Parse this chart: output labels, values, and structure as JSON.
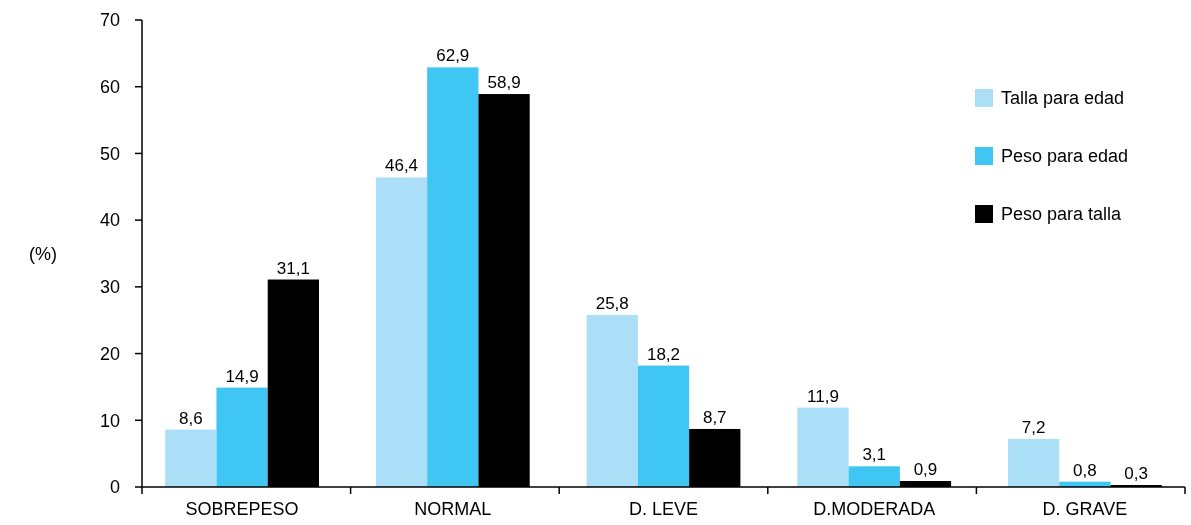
{
  "chart_data": {
    "type": "bar",
    "ylabel": "(%)",
    "categories": [
      "SOBREPESO",
      "NORMAL",
      "D. LEVE",
      "D.MODERADA",
      "D. GRAVE"
    ],
    "series": [
      {
        "name": "Talla para edad",
        "color": "#aadff7",
        "values": [
          8.6,
          46.4,
          25.8,
          11.9,
          7.2
        ],
        "value_labels": [
          "8,6",
          "46,4",
          "25,8",
          "11,9",
          "7,2"
        ]
      },
      {
        "name": "Peso para edad",
        "color": "#40c6f2",
        "values": [
          14.9,
          62.9,
          18.2,
          3.1,
          0.8
        ],
        "value_labels": [
          "14,9",
          "62,9",
          "18,2",
          "3,1",
          "0,8"
        ]
      },
      {
        "name": "Peso para talla",
        "color": "#000000",
        "values": [
          31.1,
          58.9,
          8.7,
          0.9,
          0.3
        ],
        "value_labels": [
          "31,1",
          "58,9",
          "8,7",
          "0,9",
          "0,3"
        ]
      }
    ],
    "ylim": [
      0,
      70
    ],
    "yticks": [
      0,
      10,
      20,
      30,
      40,
      50,
      60,
      70
    ],
    "grid": false,
    "legend": "top right"
  }
}
